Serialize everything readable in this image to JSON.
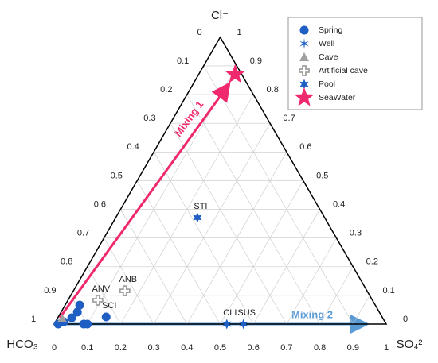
{
  "chart_data": {
    "type": "ternary",
    "top_label": "Cl⁻",
    "left_label": "HCO₃⁻",
    "right_label": "SO₄²⁻",
    "ticks": [
      0,
      0.1,
      0.2,
      0.3,
      0.4,
      0.5,
      0.6,
      0.7,
      0.8,
      0.9,
      1
    ],
    "grid": true,
    "legend": "top-right",
    "annotations": [
      "Mixing 1",
      "Mixing 2"
    ],
    "series": [
      {
        "name": "Spring",
        "color": "#1f5fc4",
        "marker": "circle",
        "cl": [
          0.066,
          0.042,
          0.022,
          0.008,
          0,
          0,
          0.025,
          0
        ],
        "so4": [
          0.044,
          0.049,
          0.042,
          0.025,
          0.089,
          0.1,
          0.144,
          0.012
        ],
        "labels": [
          null,
          null,
          null,
          null,
          null,
          null,
          "SCI",
          null
        ]
      },
      {
        "name": "Well",
        "color": "#1f5fc4",
        "marker": "asterisk",
        "cl": [],
        "so4": [],
        "labels": []
      },
      {
        "name": "Cave",
        "color": "#a0a0a0",
        "marker": "triangle",
        "cl": [
          0.02
        ],
        "so4": [
          0.014
        ],
        "labels": [
          null
        ]
      },
      {
        "name": "Artificial cave",
        "color": "#a0a0a0",
        "marker": "cross",
        "cl": [
          0.083,
          0.116
        ],
        "so4": [
          0.09,
          0.155
        ],
        "labels": [
          "ANV",
          "ANB"
        ]
      },
      {
        "name": "Pool",
        "color": "#1f5fc4",
        "marker": "star",
        "cl": [
          0.371,
          0,
          0
        ],
        "so4": [
          0.246,
          0.52,
          0.57
        ],
        "labels": [
          "STI",
          "CLI",
          "SUS"
        ]
      },
      {
        "name": "SeaWater",
        "color": "#f0286e",
        "marker": "bigstar",
        "cl": [
          0.87
        ],
        "so4": [
          0.11
        ],
        "labels": [
          null
        ]
      }
    ]
  }
}
